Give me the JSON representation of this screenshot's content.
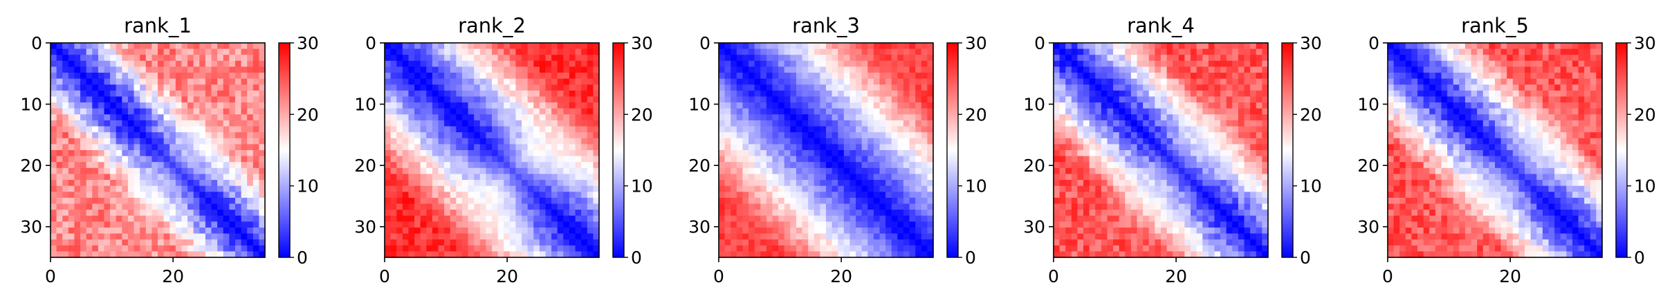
{
  "figure": {
    "colormap": "bwr",
    "colormap_stops": [
      "#0000ff",
      "#ffffff",
      "#ff0000"
    ]
  },
  "chart_data": [
    {
      "type": "heatmap",
      "title": "rank_1",
      "matrix_size": 36,
      "x_ticks": [
        0,
        20
      ],
      "y_ticks": [
        0,
        10,
        20,
        30
      ],
      "xlim": [
        0,
        35
      ],
      "ylim": [
        35,
        0
      ],
      "colorbar": {
        "range": [
          0,
          30
        ],
        "ticks": [
          0,
          10,
          20,
          30
        ]
      },
      "pattern": {
        "diag_growth": 1.7,
        "far_value": 22,
        "noise": 3.5,
        "blob_center": [
          17,
          24
        ],
        "blob_value": 14
      }
    },
    {
      "type": "heatmap",
      "title": "rank_2",
      "matrix_size": 36,
      "x_ticks": [
        0,
        20
      ],
      "y_ticks": [
        0,
        10,
        20,
        30
      ],
      "xlim": [
        0,
        35
      ],
      "ylim": [
        35,
        0
      ],
      "colorbar": {
        "range": [
          0,
          30
        ],
        "ticks": [
          0,
          10,
          20,
          30
        ]
      },
      "pattern": {
        "diag_growth": 1.25,
        "far_value": 27,
        "noise": 2.5,
        "blob_center": [
          18,
          25
        ],
        "blob_value": 18
      }
    },
    {
      "type": "heatmap",
      "title": "rank_3",
      "matrix_size": 36,
      "x_ticks": [
        0,
        20
      ],
      "y_ticks": [
        0,
        10,
        20,
        30
      ],
      "xlim": [
        0,
        35
      ],
      "ylim": [
        35,
        0
      ],
      "colorbar": {
        "range": [
          0,
          30
        ],
        "ticks": [
          0,
          10,
          20,
          30
        ]
      },
      "pattern": {
        "diag_growth": 1.05,
        "far_value": 26,
        "noise": 2.0,
        "blob_center": [
          0,
          0
        ],
        "blob_value": 0
      }
    },
    {
      "type": "heatmap",
      "title": "rank_4",
      "matrix_size": 36,
      "x_ticks": [
        0,
        20
      ],
      "y_ticks": [
        0,
        10,
        20,
        30
      ],
      "xlim": [
        0,
        35
      ],
      "ylim": [
        35,
        0
      ],
      "colorbar": {
        "range": [
          0,
          30
        ],
        "ticks": [
          0,
          10,
          20,
          30
        ]
      },
      "pattern": {
        "diag_growth": 1.5,
        "far_value": 25,
        "noise": 3.0,
        "blob_center": [
          16,
          25
        ],
        "blob_value": 15
      }
    },
    {
      "type": "heatmap",
      "title": "rank_5",
      "matrix_size": 36,
      "x_ticks": [
        0,
        20
      ],
      "y_ticks": [
        0,
        10,
        20,
        30
      ],
      "xlim": [
        0,
        35
      ],
      "ylim": [
        35,
        0
      ],
      "colorbar": {
        "range": [
          0,
          30
        ],
        "ticks": [
          0,
          10,
          20,
          30
        ]
      },
      "pattern": {
        "diag_growth": 1.55,
        "far_value": 25,
        "noise": 3.0,
        "blob_center": [
          17,
          25
        ],
        "blob_value": 15
      }
    }
  ]
}
